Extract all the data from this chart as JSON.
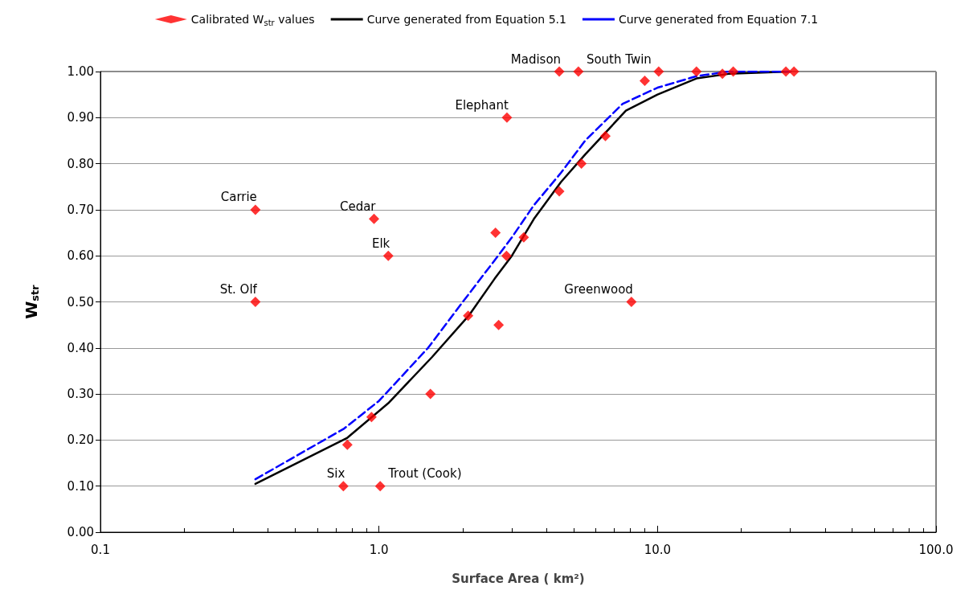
{
  "chart_data": {
    "type": "scatter",
    "xlabel": "Surface Area ( km²)",
    "ylabel": "W$_{str}$",
    "log": "x",
    "xlim": [
      0.1,
      100
    ],
    "xticks": [
      {
        "value": 0.1,
        "label": "0.1"
      },
      {
        "value": 1,
        "label": "1.0"
      },
      {
        "value": 10,
        "label": "10.0"
      },
      {
        "value": 100,
        "label": "100.0"
      }
    ],
    "ylim": [
      0,
      1
    ],
    "yticks": [
      {
        "value": 0,
        "label": "0.00"
      },
      {
        "value": 0.1,
        "label": "0.10"
      },
      {
        "value": 0.2,
        "label": "0.20"
      },
      {
        "value": 0.3,
        "label": "0.30"
      },
      {
        "value": 0.4,
        "label": "0.40"
      },
      {
        "value": 0.5,
        "label": "0.50"
      },
      {
        "value": 0.6,
        "label": "0.60"
      },
      {
        "value": 0.7,
        "label": "0.70"
      },
      {
        "value": 0.8,
        "label": "0.80"
      },
      {
        "value": 0.9,
        "label": "0.90"
      },
      {
        "value": 1,
        "label": "1.00"
      }
    ],
    "grid": "y",
    "legend": "top",
    "series": [
      {
        "name": "Calibrated W$_{str}$ values",
        "marker": "diamond",
        "color": "#ff0000",
        "x": [
          0.36,
          0.36,
          0.745,
          1.01,
          0.77,
          0.94,
          0.96,
          1.08,
          1.53,
          2.09,
          2.62,
          2.69,
          2.87,
          3.31,
          2.88,
          4.44,
          4.44,
          5.2,
          5.33,
          6.5,
          8.06,
          9.0,
          10.1,
          13.8,
          17.1,
          18.7,
          28.9,
          30.9
        ],
        "values": [
          0.7,
          0.5,
          0.1,
          0.1,
          0.19,
          0.25,
          0.68,
          0.6,
          0.3,
          0.47,
          0.65,
          0.45,
          0.6,
          0.64,
          0.9,
          0.74,
          1.0,
          1.0,
          0.8,
          0.86,
          0.5,
          0.98,
          1.0,
          1.0,
          0.995,
          1.0,
          1.0,
          1.0
        ]
      },
      {
        "name": "Curve generated from Equation 5.1",
        "type": "line",
        "marker": "none",
        "line_style": "solid",
        "color": "#000000",
        "x": [
          0.36,
          0.77,
          1.08,
          1.55,
          2.1,
          2.6,
          3.0,
          3.6,
          4.5,
          5.5,
          7.7,
          10,
          13.8,
          18,
          30
        ],
        "values": [
          0.105,
          0.205,
          0.28,
          0.38,
          0.47,
          0.55,
          0.6,
          0.68,
          0.76,
          0.82,
          0.915,
          0.95,
          0.985,
          0.995,
          1.0
        ]
      },
      {
        "name": "Curve generated from Equation 7.1",
        "type": "line",
        "marker": "none",
        "line_style": "dashed",
        "color": "#0000ff",
        "x": [
          0.36,
          0.75,
          1.0,
          1.5,
          2.0,
          2.6,
          3.0,
          3.6,
          4.5,
          5.5,
          7.5,
          10,
          13.8,
          18,
          30
        ],
        "values": [
          0.115,
          0.225,
          0.285,
          0.4,
          0.5,
          0.59,
          0.64,
          0.71,
          0.78,
          0.85,
          0.93,
          0.965,
          0.99,
          1.0,
          1.0
        ]
      }
    ],
    "annotations": [
      {
        "text": "Carrie",
        "x": 0.36,
        "y": 0.7
      },
      {
        "text": "St. Olf",
        "x": 0.36,
        "y": 0.5
      },
      {
        "text": "Six",
        "x": 0.745,
        "y": 0.1
      },
      {
        "text": "Trout (Cook)",
        "x": 1.01,
        "y": 0.1
      },
      {
        "text": "Cedar",
        "x": 0.96,
        "y": 0.68
      },
      {
        "text": "Elk",
        "x": 1.08,
        "y": 0.6
      },
      {
        "text": "Elephant",
        "x": 2.88,
        "y": 0.9
      },
      {
        "text": "Madison",
        "x": 4.44,
        "y": 1.0
      },
      {
        "text": "South Twin",
        "x": 5.2,
        "y": 1.0
      },
      {
        "text": "Greenwood",
        "x": 8.06,
        "y": 0.5
      }
    ]
  }
}
